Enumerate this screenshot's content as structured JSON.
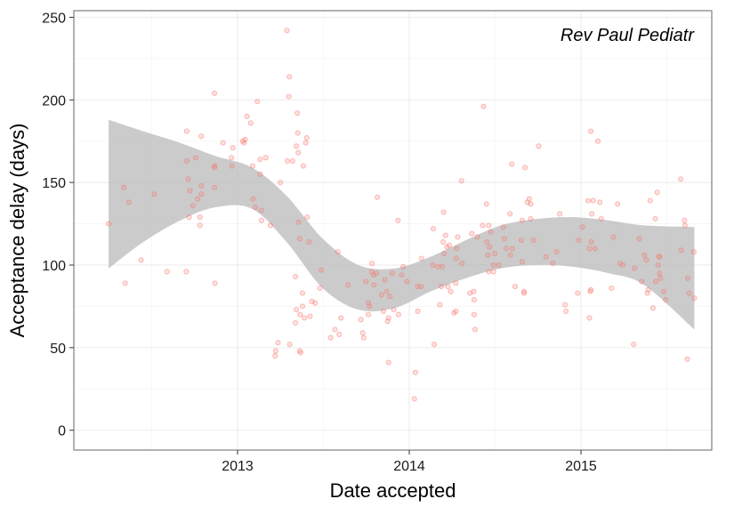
{
  "chart_data": {
    "type": "scatter",
    "title": "",
    "xlabel": "Date accepted",
    "ylabel": "Acceptance delay (days)",
    "annotation": "Rev Paul Pediatr",
    "x_ticks": [
      "2013",
      "2014",
      "2015"
    ],
    "y_ticks": [
      "0",
      "50",
      "100",
      "150",
      "200",
      "250"
    ],
    "xlim": [
      "2012-01-19",
      "2015-10-06"
    ],
    "ylim": [
      -12,
      254
    ],
    "grid": true,
    "legend": "none",
    "colors": {
      "points": "#f8766d",
      "band": "#bebebe",
      "panel_border": "#7f7f7f",
      "grid": "#ebebeb"
    },
    "points": [
      {
        "x": "2012-04-02",
        "y": 125
      },
      {
        "x": "2012-05-04",
        "y": 147
      },
      {
        "x": "2012-05-07",
        "y": 89
      },
      {
        "x": "2012-05-15",
        "y": 138
      },
      {
        "x": "2012-06-10",
        "y": 103
      },
      {
        "x": "2012-07-08",
        "y": 143
      },
      {
        "x": "2012-08-04",
        "y": 96
      },
      {
        "x": "2012-09-14",
        "y": 96
      },
      {
        "x": "2012-09-15",
        "y": 181
      },
      {
        "x": "2012-09-15",
        "y": 163
      },
      {
        "x": "2012-09-18",
        "y": 152
      },
      {
        "x": "2012-09-20",
        "y": 129
      },
      {
        "x": "2012-09-22",
        "y": 145
      },
      {
        "x": "2012-09-28",
        "y": 136
      },
      {
        "x": "2012-10-04",
        "y": 165
      },
      {
        "x": "2012-10-08",
        "y": 140
      },
      {
        "x": "2012-10-13",
        "y": 124
      },
      {
        "x": "2012-10-13",
        "y": 129
      },
      {
        "x": "2012-10-16",
        "y": 178
      },
      {
        "x": "2012-10-16",
        "y": 148
      },
      {
        "x": "2012-10-16",
        "y": 143
      },
      {
        "x": "2012-11-13",
        "y": 204
      },
      {
        "x": "2012-11-13",
        "y": 147
      },
      {
        "x": "2012-11-13",
        "y": 159
      },
      {
        "x": "2012-11-13",
        "y": 160
      },
      {
        "x": "2012-11-14",
        "y": 89
      },
      {
        "x": "2012-12-01",
        "y": 174
      },
      {
        "x": "2012-12-19",
        "y": 165
      },
      {
        "x": "2012-12-20",
        "y": 160
      },
      {
        "x": "2012-12-22",
        "y": 171
      },
      {
        "x": "2013-01-12",
        "y": 175
      },
      {
        "x": "2013-01-15",
        "y": 174
      },
      {
        "x": "2013-01-17",
        "y": 176
      },
      {
        "x": "2013-01-21",
        "y": 190
      },
      {
        "x": "2013-01-29",
        "y": 186
      },
      {
        "x": "2013-02-02",
        "y": 160
      },
      {
        "x": "2013-02-03",
        "y": 140
      },
      {
        "x": "2013-02-08",
        "y": 135
      },
      {
        "x": "2013-02-12",
        "y": 199
      },
      {
        "x": "2013-02-18",
        "y": 164
      },
      {
        "x": "2013-02-18",
        "y": 155
      },
      {
        "x": "2013-02-21",
        "y": 127
      },
      {
        "x": "2013-02-21",
        "y": 133
      },
      {
        "x": "2013-03-02",
        "y": 165
      },
      {
        "x": "2013-03-12",
        "y": 124
      },
      {
        "x": "2013-03-22",
        "y": 45
      },
      {
        "x": "2013-03-23",
        "y": 48
      },
      {
        "x": "2013-03-28",
        "y": 53
      },
      {
        "x": "2013-04-02",
        "y": 150
      },
      {
        "x": "2013-04-16",
        "y": 242
      },
      {
        "x": "2013-04-17",
        "y": 163
      },
      {
        "x": "2013-04-20",
        "y": 202
      },
      {
        "x": "2013-04-21",
        "y": 214
      },
      {
        "x": "2013-04-22",
        "y": 52
      },
      {
        "x": "2013-04-28",
        "y": 163
      },
      {
        "x": "2013-05-04",
        "y": 93
      },
      {
        "x": "2013-05-04",
        "y": 65
      },
      {
        "x": "2013-05-06",
        "y": 73
      },
      {
        "x": "2013-05-06",
        "y": 172
      },
      {
        "x": "2013-05-08",
        "y": 192
      },
      {
        "x": "2013-05-09",
        "y": 180
      },
      {
        "x": "2013-05-10",
        "y": 168
      },
      {
        "x": "2013-05-11",
        "y": 126
      },
      {
        "x": "2013-05-13",
        "y": 116
      },
      {
        "x": "2013-05-13",
        "y": 48
      },
      {
        "x": "2013-05-14",
        "y": 70
      },
      {
        "x": "2013-05-15",
        "y": 47
      },
      {
        "x": "2013-05-19",
        "y": 75
      },
      {
        "x": "2013-05-19",
        "y": 83
      },
      {
        "x": "2013-05-21",
        "y": 160
      },
      {
        "x": "2013-05-23",
        "y": 68
      },
      {
        "x": "2013-05-26",
        "y": 174
      },
      {
        "x": "2013-05-28",
        "y": 177
      },
      {
        "x": "2013-05-29",
        "y": 129
      },
      {
        "x": "2013-06-02",
        "y": 114
      },
      {
        "x": "2013-06-04",
        "y": 69
      },
      {
        "x": "2013-06-08",
        "y": 78
      },
      {
        "x": "2013-06-15",
        "y": 77
      },
      {
        "x": "2013-06-25",
        "y": 86
      },
      {
        "x": "2013-06-28",
        "y": 97
      },
      {
        "x": "2013-07-18",
        "y": 56
      },
      {
        "x": "2013-07-27",
        "y": 61
      },
      {
        "x": "2013-08-02",
        "y": 108
      },
      {
        "x": "2013-08-05",
        "y": 58
      },
      {
        "x": "2013-08-09",
        "y": 68
      },
      {
        "x": "2013-08-24",
        "y": 88
      },
      {
        "x": "2013-09-20",
        "y": 67
      },
      {
        "x": "2013-09-24",
        "y": 59
      },
      {
        "x": "2013-09-26",
        "y": 56
      },
      {
        "x": "2013-10-01",
        "y": 90
      },
      {
        "x": "2013-10-06",
        "y": 77
      },
      {
        "x": "2013-10-06",
        "y": 70
      },
      {
        "x": "2013-10-09",
        "y": 75
      },
      {
        "x": "2013-10-13",
        "y": 96
      },
      {
        "x": "2013-10-14",
        "y": 101
      },
      {
        "x": "2013-10-17",
        "y": 94
      },
      {
        "x": "2013-10-18",
        "y": 88
      },
      {
        "x": "2013-10-23",
        "y": 95
      },
      {
        "x": "2013-10-25",
        "y": 141
      },
      {
        "x": "2013-11-03",
        "y": 82
      },
      {
        "x": "2013-11-07",
        "y": 72
      },
      {
        "x": "2013-11-10",
        "y": 91
      },
      {
        "x": "2013-11-14",
        "y": 84
      },
      {
        "x": "2013-11-16",
        "y": 66
      },
      {
        "x": "2013-11-18",
        "y": 41
      },
      {
        "x": "2013-11-18",
        "y": 68
      },
      {
        "x": "2013-11-21",
        "y": 81
      },
      {
        "x": "2013-11-26",
        "y": 95
      },
      {
        "x": "2013-11-29",
        "y": 73
      },
      {
        "x": "2013-12-08",
        "y": 127
      },
      {
        "x": "2013-12-09",
        "y": 70
      },
      {
        "x": "2013-12-16",
        "y": 94
      },
      {
        "x": "2013-12-19",
        "y": 99
      },
      {
        "x": "2013-12-27",
        "y": 90
      },
      {
        "x": "2014-01-12",
        "y": 19
      },
      {
        "x": "2014-01-14",
        "y": 35
      },
      {
        "x": "2014-01-19",
        "y": 72
      },
      {
        "x": "2014-01-19",
        "y": 87
      },
      {
        "x": "2014-01-26",
        "y": 87
      },
      {
        "x": "2014-01-27",
        "y": 104
      },
      {
        "x": "2014-02-20",
        "y": 100
      },
      {
        "x": "2014-02-21",
        "y": 122
      },
      {
        "x": "2014-02-23",
        "y": 52
      },
      {
        "x": "2014-03-03",
        "y": 99
      },
      {
        "x": "2014-03-07",
        "y": 76
      },
      {
        "x": "2014-03-10",
        "y": 87
      },
      {
        "x": "2014-03-12",
        "y": 99
      },
      {
        "x": "2014-03-14",
        "y": 114
      },
      {
        "x": "2014-03-15",
        "y": 132
      },
      {
        "x": "2014-03-16",
        "y": 107
      },
      {
        "x": "2014-03-19",
        "y": 118
      },
      {
        "x": "2014-03-22",
        "y": 111
      },
      {
        "x": "2014-03-24",
        "y": 87
      },
      {
        "x": "2014-03-27",
        "y": 112
      },
      {
        "x": "2014-03-30",
        "y": 84
      },
      {
        "x": "2014-04-06",
        "y": 71
      },
      {
        "x": "2014-04-10",
        "y": 89
      },
      {
        "x": "2014-04-10",
        "y": 72
      },
      {
        "x": "2014-04-11",
        "y": 104
      },
      {
        "x": "2014-04-12",
        "y": 110
      },
      {
        "x": "2014-04-14",
        "y": 117
      },
      {
        "x": "2014-04-22",
        "y": 151
      },
      {
        "x": "2014-04-23",
        "y": 101
      },
      {
        "x": "2014-05-10",
        "y": 83
      },
      {
        "x": "2014-05-14",
        "y": 119
      },
      {
        "x": "2014-05-18",
        "y": 84
      },
      {
        "x": "2014-05-19",
        "y": 79
      },
      {
        "x": "2014-05-19",
        "y": 70
      },
      {
        "x": "2014-05-21",
        "y": 61
      },
      {
        "x": "2014-05-26",
        "y": 117
      },
      {
        "x": "2014-06-06",
        "y": 124
      },
      {
        "x": "2014-06-08",
        "y": 196
      },
      {
        "x": "2014-06-14",
        "y": 137
      },
      {
        "x": "2014-06-15",
        "y": 114
      },
      {
        "x": "2014-06-17",
        "y": 106
      },
      {
        "x": "2014-06-19",
        "y": 96
      },
      {
        "x": "2014-06-19",
        "y": 124
      },
      {
        "x": "2014-06-21",
        "y": 111
      },
      {
        "x": "2014-06-23",
        "y": 120
      },
      {
        "x": "2014-06-29",
        "y": 100
      },
      {
        "x": "2014-06-29",
        "y": 96
      },
      {
        "x": "2014-07-02",
        "y": 107
      },
      {
        "x": "2014-07-10",
        "y": 100
      },
      {
        "x": "2014-07-20",
        "y": 123
      },
      {
        "x": "2014-07-22",
        "y": 116
      },
      {
        "x": "2014-07-26",
        "y": 110
      },
      {
        "x": "2014-08-03",
        "y": 131
      },
      {
        "x": "2014-08-04",
        "y": 106
      },
      {
        "x": "2014-08-07",
        "y": 161
      },
      {
        "x": "2014-08-08",
        "y": 110
      },
      {
        "x": "2014-08-14",
        "y": 87
      },
      {
        "x": "2014-08-27",
        "y": 115
      },
      {
        "x": "2014-08-29",
        "y": 127
      },
      {
        "x": "2014-08-29",
        "y": 102
      },
      {
        "x": "2014-09-02",
        "y": 83
      },
      {
        "x": "2014-09-02",
        "y": 84
      },
      {
        "x": "2014-09-04",
        "y": 159
      },
      {
        "x": "2014-09-09",
        "y": 138
      },
      {
        "x": "2014-09-13",
        "y": 140
      },
      {
        "x": "2014-09-16",
        "y": 128
      },
      {
        "x": "2014-09-16",
        "y": 137
      },
      {
        "x": "2014-09-22",
        "y": 115
      },
      {
        "x": "2014-10-03",
        "y": 172
      },
      {
        "x": "2014-10-19",
        "y": 105
      },
      {
        "x": "2014-11-02",
        "y": 101
      },
      {
        "x": "2014-11-10",
        "y": 108
      },
      {
        "x": "2014-11-17",
        "y": 131
      },
      {
        "x": "2014-11-28",
        "y": 76
      },
      {
        "x": "2014-11-30",
        "y": 72
      },
      {
        "x": "2014-12-25",
        "y": 83
      },
      {
        "x": "2014-12-27",
        "y": 115
      },
      {
        "x": "2015-01-04",
        "y": 123
      },
      {
        "x": "2015-01-16",
        "y": 139
      },
      {
        "x": "2015-01-19",
        "y": 68
      },
      {
        "x": "2015-01-19",
        "y": 110
      },
      {
        "x": "2015-01-21",
        "y": 84
      },
      {
        "x": "2015-01-22",
        "y": 85
      },
      {
        "x": "2015-01-22",
        "y": 181
      },
      {
        "x": "2015-01-23",
        "y": 114
      },
      {
        "x": "2015-01-24",
        "y": 131
      },
      {
        "x": "2015-01-27",
        "y": 139
      },
      {
        "x": "2015-01-31",
        "y": 110
      },
      {
        "x": "2015-02-06",
        "y": 175
      },
      {
        "x": "2015-02-10",
        "y": 138
      },
      {
        "x": "2015-02-13",
        "y": 128
      },
      {
        "x": "2015-03-07",
        "y": 86
      },
      {
        "x": "2015-03-11",
        "y": 117
      },
      {
        "x": "2015-03-20",
        "y": 137
      },
      {
        "x": "2015-03-25",
        "y": 101
      },
      {
        "x": "2015-03-31",
        "y": 100
      },
      {
        "x": "2015-04-23",
        "y": 52
      },
      {
        "x": "2015-04-25",
        "y": 98
      },
      {
        "x": "2015-05-05",
        "y": 116
      },
      {
        "x": "2015-05-10",
        "y": 90
      },
      {
        "x": "2015-05-16",
        "y": 106
      },
      {
        "x": "2015-05-20",
        "y": 103
      },
      {
        "x": "2015-05-22",
        "y": 83
      },
      {
        "x": "2015-05-24",
        "y": 85
      },
      {
        "x": "2015-05-28",
        "y": 139
      },
      {
        "x": "2015-06-03",
        "y": 74
      },
      {
        "x": "2015-06-08",
        "y": 128
      },
      {
        "x": "2015-06-09",
        "y": 90
      },
      {
        "x": "2015-06-12",
        "y": 144
      },
      {
        "x": "2015-06-14",
        "y": 100
      },
      {
        "x": "2015-06-16",
        "y": 105
      },
      {
        "x": "2015-06-17",
        "y": 105
      },
      {
        "x": "2015-06-17",
        "y": 95
      },
      {
        "x": "2015-06-19",
        "y": 92
      },
      {
        "x": "2015-06-26",
        "y": 84
      },
      {
        "x": "2015-06-30",
        "y": 79
      },
      {
        "x": "2015-08-01",
        "y": 152
      },
      {
        "x": "2015-08-02",
        "y": 109
      },
      {
        "x": "2015-08-09",
        "y": 127
      },
      {
        "x": "2015-08-10",
        "y": 124
      },
      {
        "x": "2015-08-15",
        "y": 43
      },
      {
        "x": "2015-08-16",
        "y": 92
      },
      {
        "x": "2015-08-19",
        "y": 83
      },
      {
        "x": "2015-08-29",
        "y": 108
      },
      {
        "x": "2015-08-30",
        "y": 80
      }
    ],
    "smooth_band": [
      {
        "x": "2012-04-02",
        "lower": 98,
        "upper": 188
      },
      {
        "x": "2012-06-15",
        "lower": 114,
        "upper": 181
      },
      {
        "x": "2012-09-01",
        "lower": 127,
        "upper": 174
      },
      {
        "x": "2012-11-15",
        "lower": 135,
        "upper": 166
      },
      {
        "x": "2013-02-01",
        "lower": 134,
        "upper": 159
      },
      {
        "x": "2013-04-15",
        "lower": 114,
        "upper": 142
      },
      {
        "x": "2013-07-01",
        "lower": 86,
        "upper": 116
      },
      {
        "x": "2013-09-15",
        "lower": 73,
        "upper": 100
      },
      {
        "x": "2013-12-01",
        "lower": 74,
        "upper": 98
      },
      {
        "x": "2014-02-15",
        "lower": 84,
        "upper": 105
      },
      {
        "x": "2014-05-01",
        "lower": 92,
        "upper": 115
      },
      {
        "x": "2014-07-15",
        "lower": 98,
        "upper": 124
      },
      {
        "x": "2014-10-01",
        "lower": 100,
        "upper": 128
      },
      {
        "x": "2014-12-15",
        "lower": 99,
        "upper": 129
      },
      {
        "x": "2015-03-01",
        "lower": 95,
        "upper": 127
      },
      {
        "x": "2015-05-15",
        "lower": 88,
        "upper": 124
      },
      {
        "x": "2015-08-30",
        "lower": 61,
        "upper": 123
      }
    ]
  }
}
